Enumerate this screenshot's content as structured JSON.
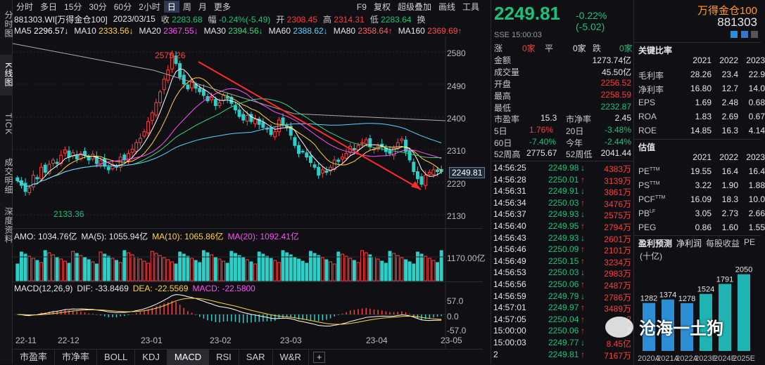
{
  "side_tabs": [
    "分时图",
    "K线图",
    "TICK",
    "成交明细",
    "深度资料"
  ],
  "periods": [
    "分时",
    "多日",
    "15分",
    "30分",
    "60分",
    "2小时",
    "日",
    "周",
    "月",
    "更多"
  ],
  "active_period": "日",
  "toolbar_right": [
    "F9",
    "复权",
    "超级叠加",
    "画线",
    "工具"
  ],
  "info": {
    "code": "881303.WI[万得金仓100]",
    "date": "2023/03/15",
    "close_label": "收",
    "close": "2283.68",
    "chg_label": "幅",
    "chg": "-0.24%(-5.49)",
    "open_label": "开",
    "open": "2308.45",
    "high_label": "高",
    "high": "2314.31",
    "low_label": "低",
    "low": "2283.64",
    "switch": "换"
  },
  "ma": [
    {
      "label": "MA5",
      "value": "2296.57↓",
      "color": "#ffffff"
    },
    {
      "label": "MA10",
      "value": "2333.56↓",
      "color": "#ffd23c"
    },
    {
      "label": "MA20",
      "value": "2367.55↓",
      "color": "#ff4df5"
    },
    {
      "label": "MA30",
      "value": "2394.56↓",
      "color": "#3cd27a"
    },
    {
      "label": "MA60",
      "value": "2388.62↓",
      "color": "#5ad2ff"
    },
    {
      "label": "MA80",
      "value": "2358.64↑",
      "color": "#ff6060"
    },
    {
      "label": "MA160",
      "value": "2369.69↑",
      "color": "#ff4a4a"
    }
  ],
  "price_axis": [
    "2580",
    "2490",
    "2400",
    "2310",
    "2220",
    "2130"
  ],
  "high_mark": "2575.26",
  "low_mark": "2133.36",
  "last_price_tag": "2249.81",
  "amo": {
    "label": "AMO: 1034.76亿",
    "ma5": "MA(5): 1055.94亿",
    "ma10": "MA(10): 1065.86亿",
    "ma20": "MA(20): 1092.41亿",
    "axis": "1170.00亿"
  },
  "macd": {
    "label": "MACD(12,26,9)",
    "dif": "DIF: -33.8469",
    "dea": "DEA: -22.5569",
    "macd": "MACD: -22.5800",
    "axis_top": "57.0",
    "axis_mid": "0.0",
    "axis_bot": "-57.0"
  },
  "dates": [
    "22-11",
    "22-12",
    "23-01",
    "23-02",
    "23-03",
    "23-04",
    "23-05"
  ],
  "bottom_tabs": [
    "市盈率",
    "市净率",
    "BOLL",
    "KDJ",
    "MACD",
    "RSI",
    "SAR",
    "W&R"
  ],
  "active_bottom_tab": "MACD",
  "quote": {
    "price": "2249.81",
    "change": "-0.22% (-5.02)",
    "exchange": "SSE",
    "time": "15:00:03",
    "name": "万得金仓100",
    "code": "881303"
  },
  "breadth": {
    "up_label": "涨",
    "up": "0家",
    "flat_label": "平",
    "flat": "0家",
    "down_label": "跌",
    "down": "0家"
  },
  "stats": [
    {
      "label": "金额",
      "value": "1273.74亿",
      "cls": "wh"
    },
    {
      "label": "成交量",
      "value": "45.50亿",
      "cls": "wh"
    },
    {
      "label": "开盘",
      "value": "2256.52",
      "cls": "up"
    },
    {
      "label": "最高",
      "value": "2258.59",
      "cls": "up"
    },
    {
      "label": "最低",
      "value": "2232.87",
      "cls": "dn"
    }
  ],
  "ratios": {
    "pe_label": "市盈率",
    "pe": "15.3",
    "pb_label": "市净率",
    "pb": "2.45"
  },
  "perf": [
    {
      "l1": "5日",
      "v1": "1.76%",
      "c1": "up",
      "l2": "20日",
      "v2": "-3.48%",
      "c2": "dn"
    },
    {
      "l1": "60日",
      "v1": "-7.40%",
      "c1": "dn",
      "l2": "今年",
      "v2": "-2.44%",
      "c2": "dn"
    }
  ],
  "week52": {
    "high_label": "52周高",
    "high": "2775.67",
    "low_label": "52周低",
    "low": "2041.44"
  },
  "ticks": [
    {
      "t": "14:56:25",
      "p": "2249.98",
      "d": "↓",
      "v": "4383万"
    },
    {
      "t": "14:56:28",
      "p": "2250.01",
      "d": "↑",
      "v": "3139万"
    },
    {
      "t": "14:56:31",
      "p": "2249.91",
      "d": "↓",
      "v": "3861万"
    },
    {
      "t": "14:56:34",
      "p": "2250.03",
      "d": "↑",
      "v": "3476万"
    },
    {
      "t": "14:56:37",
      "p": "2249.93",
      "d": "↓",
      "v": "2575万"
    },
    {
      "t": "14:56:40",
      "p": "2249.95",
      "d": "↑",
      "v": "2794万"
    },
    {
      "t": "14:56:43",
      "p": "2249.93",
      "d": "↓",
      "v": "2601万"
    },
    {
      "t": "14:56:46",
      "p": "2250.09",
      "d": "↑",
      "v": "2101万"
    },
    {
      "t": "14:56:49",
      "p": "2250.15",
      "d": "↑",
      "v": "3234万"
    },
    {
      "t": "14:56:53",
      "p": "2250.03",
      "d": "↓",
      "v": "2983万"
    },
    {
      "t": "14:56:56",
      "p": "2250.06",
      "d": "↑",
      "v": "2487万"
    },
    {
      "t": "14:56:59",
      "p": "2249.79",
      "d": "↓",
      "v": "2786万"
    },
    {
      "t": "14:57:01",
      "p": "2249.97",
      "d": "↑",
      "v": "3489万"
    },
    {
      "t": "14:57:05",
      "p": "2250.04",
      "d": "↑",
      "v": "2"
    },
    {
      "t": "15:00:00",
      "p": "2250.06",
      "d": "↑",
      "v": "2"
    },
    {
      "t": "15:00:03",
      "p": "2249.77",
      "d": "↓",
      "v": "8.45亿"
    },
    {
      "t": "2",
      "p": "2249.81",
      "d": "↑",
      "v": "7167万"
    }
  ],
  "fin_title": "关键比率",
  "years": [
    "2021",
    "2022",
    "2023"
  ],
  "fin_rows": [
    {
      "label": "毛利率",
      "v": [
        "28.26",
        "23.4",
        "22.9"
      ]
    },
    {
      "label": "净利率",
      "v": [
        "16.80",
        "12.7",
        "14.0"
      ]
    },
    {
      "label": "EPS",
      "v": [
        "1.69",
        "2.48",
        "0.68"
      ]
    },
    {
      "label": "ROA",
      "v": [
        "1.83",
        "2.69",
        "0.67"
      ]
    },
    {
      "label": "ROE",
      "v": [
        "14.85",
        "16.3",
        "4.14"
      ]
    }
  ],
  "val_title": "估值",
  "val_rows": [
    {
      "label": "PE",
      "sup": "TTM",
      "v": [
        "19.55",
        "16.4",
        "16.4"
      ]
    },
    {
      "label": "PS",
      "sup": "TTM",
      "v": [
        "3.22",
        "1.90",
        "1.88"
      ]
    },
    {
      "label": "PCF",
      "sup": "TTM",
      "v": [
        "16.09",
        "18.3",
        "10.0"
      ]
    },
    {
      "label": "PB",
      "sup": "LF",
      "v": [
        "3.05",
        "2.73",
        "2.66"
      ]
    },
    {
      "label": "PEG",
      "sup": "",
      "v": [
        "0.86",
        "1.60",
        "1.55"
      ]
    }
  ],
  "forecast_tabs": [
    "盈利预测",
    "净利润",
    "每股收益",
    "PE"
  ],
  "forecast_unit": "(十亿)",
  "forecast_values": [
    "1282",
    "1374",
    "1278",
    "1524",
    "1791",
    "2050"
  ],
  "forecast_years": [
    "2020A",
    "2021A",
    "2022A",
    "2023E",
    "2024E",
    "2025E"
  ],
  "watermark": "沧海一土狗"
}
